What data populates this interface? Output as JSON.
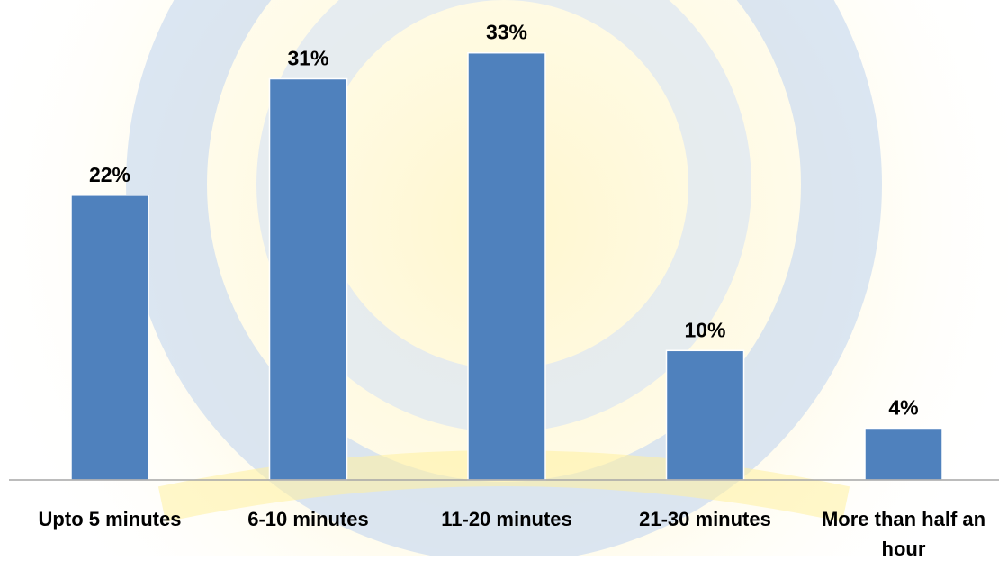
{
  "chart_data": {
    "type": "bar",
    "categories": [
      "Upto 5 minutes",
      "6-10 minutes",
      "11-20 minutes",
      "21-30 minutes",
      "More than half an hour"
    ],
    "values": [
      22,
      31,
      33,
      10,
      4
    ],
    "data_labels": [
      "22%",
      "31%",
      "33%",
      "10%",
      "4%"
    ],
    "ylim": [
      0,
      35
    ],
    "grid": false,
    "legend": "none"
  },
  "colors": {
    "bar": "#4F81BD",
    "axis": "#A6A6A6",
    "text": "#000000",
    "watermark_blue": "#C9D9EF",
    "watermark_yellow": "#FFF3B0"
  }
}
